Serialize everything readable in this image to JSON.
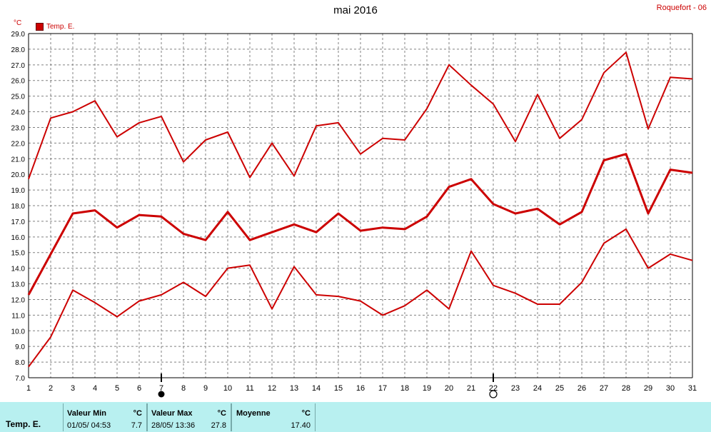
{
  "header": {
    "title": "mai 2016",
    "station": "Roquefort - 06",
    "unit_label": "°C",
    "legend_label": "Temp. E."
  },
  "colors": {
    "series": "#cc0000",
    "footer_bg": "#b8f0f0",
    "grid": "#808080"
  },
  "chart_data": {
    "type": "line",
    "title": "mai 2016",
    "ylabel": "°C",
    "xlabel": "",
    "ylim": [
      7.0,
      29.0
    ],
    "ytick_step": 1.0,
    "x": [
      1,
      2,
      3,
      4,
      5,
      6,
      7,
      8,
      9,
      10,
      11,
      12,
      13,
      14,
      15,
      16,
      17,
      18,
      19,
      20,
      21,
      22,
      23,
      24,
      25,
      26,
      27,
      28,
      29,
      30,
      31
    ],
    "series": [
      {
        "name": "Temp. E.",
        "role": "max",
        "values": [
          19.7,
          23.6,
          24.0,
          24.7,
          22.4,
          23.3,
          23.7,
          20.8,
          22.2,
          22.7,
          19.8,
          22.0,
          19.9,
          23.1,
          23.3,
          21.3,
          22.3,
          22.2,
          24.2,
          27.0,
          25.7,
          24.5,
          22.1,
          25.1,
          22.3,
          23.5,
          26.5,
          27.8,
          22.9,
          26.2,
          26.1
        ]
      },
      {
        "name": "Temp. E.",
        "role": "mean",
        "values": [
          12.3,
          14.9,
          17.5,
          17.7,
          16.6,
          17.4,
          17.3,
          16.2,
          15.8,
          17.6,
          15.8,
          16.3,
          16.8,
          16.3,
          17.5,
          16.4,
          16.6,
          16.5,
          17.3,
          19.2,
          19.7,
          18.1,
          17.5,
          17.8,
          16.8,
          17.6,
          20.9,
          21.3,
          17.5,
          20.3,
          20.1
        ]
      },
      {
        "name": "Temp. E.",
        "role": "min",
        "values": [
          7.7,
          9.6,
          12.6,
          11.8,
          10.9,
          11.9,
          12.3,
          13.1,
          12.2,
          14.0,
          14.2,
          11.4,
          14.1,
          12.3,
          12.2,
          11.9,
          11.0,
          11.6,
          12.6,
          11.4,
          15.1,
          12.9,
          12.4,
          11.7,
          11.7,
          13.1,
          15.6,
          16.5,
          14.0,
          14.9,
          14.5
        ]
      }
    ],
    "markers": [
      {
        "day": 7,
        "symbol": "full-moon-dot"
      },
      {
        "day": 22,
        "symbol": "empty-circle"
      }
    ],
    "grid": true,
    "legend": "top-left"
  },
  "footer": {
    "label": "Temp. E.",
    "min": {
      "title": "Valeur Min",
      "unit": "°C",
      "date": "01/05/  04:53",
      "value": "7.7"
    },
    "max": {
      "title": "Valeur Max",
      "unit": "°C",
      "date": "28/05/  13:36",
      "value": "27.8"
    },
    "mean": {
      "title": "Moyenne",
      "unit": "°C",
      "value": "17.40"
    }
  }
}
